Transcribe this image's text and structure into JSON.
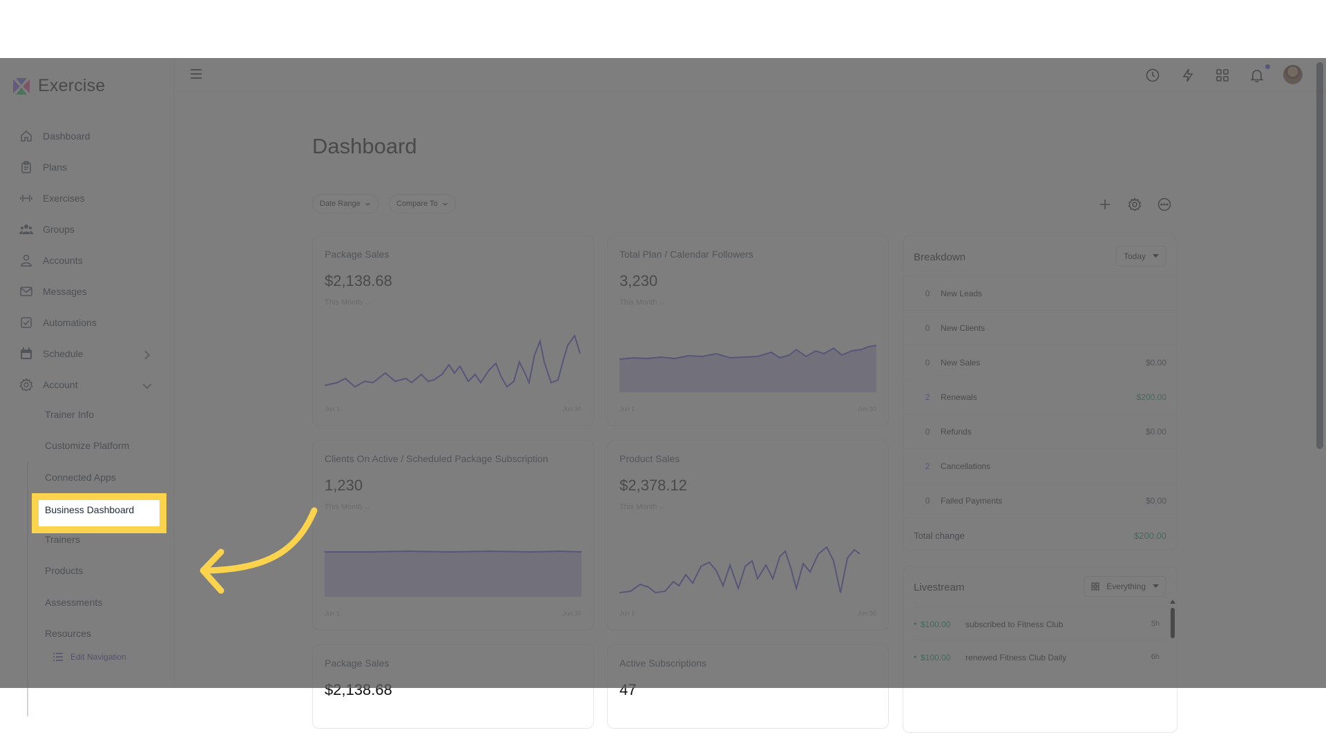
{
  "app": {
    "name": "Exercise"
  },
  "sidebar": {
    "items": [
      {
        "label": "Dashboard",
        "icon": "home-icon"
      },
      {
        "label": "Plans",
        "icon": "clipboard-icon"
      },
      {
        "label": "Exercises",
        "icon": "dumbbell-icon"
      },
      {
        "label": "Groups",
        "icon": "users-icon"
      },
      {
        "label": "Accounts",
        "icon": "user-icon"
      },
      {
        "label": "Messages",
        "icon": "mail-icon"
      },
      {
        "label": "Automations",
        "icon": "checkbox-icon"
      },
      {
        "label": "Schedule",
        "icon": "calendar-icon"
      },
      {
        "label": "Account",
        "icon": "gear-icon"
      }
    ],
    "sub_items": [
      "Trainer Info",
      "Customize Platform",
      "Connected Apps",
      "Business Dashboard",
      "Trainers",
      "Products",
      "Assessments",
      "Resources"
    ],
    "edit_navigation": "Edit Navigation"
  },
  "page": {
    "title": "Dashboard",
    "filters": {
      "date_range": "Date Range",
      "compare_to": "Compare To"
    }
  },
  "cards": [
    {
      "title": "Package Sales",
      "value": "$2,138.68",
      "period": "This Month",
      "start": "Jun 1",
      "end": "Jun 30"
    },
    {
      "title": "Total Plan / Calendar Followers",
      "value": "3,230",
      "period": "This Month",
      "start": "Jun 1",
      "end": "Jun 30"
    },
    {
      "title": "Clients On Active / Scheduled Package Subscription",
      "value": "1,230",
      "period": "This Month",
      "start": "Jun 1",
      "end": "Jun 30"
    },
    {
      "title": "Product Sales",
      "value": "$2,378.12",
      "period": "This Month",
      "start": "Jun 1",
      "end": "Jun 30"
    },
    {
      "title": "Package Sales",
      "value": "$2,138.68"
    },
    {
      "title": "Active Subscriptions",
      "value": "47"
    }
  ],
  "breakdown": {
    "title": "Breakdown",
    "select": "Today",
    "rows": [
      {
        "count": "0",
        "label": "New Leads",
        "amount": ""
      },
      {
        "count": "0",
        "label": "New Clients",
        "amount": ""
      },
      {
        "count": "0",
        "label": "New Sales",
        "amount": "$0.00"
      },
      {
        "count": "2",
        "label": "Renewals",
        "amount": "$200.00"
      },
      {
        "count": "0",
        "label": "Refunds",
        "amount": "$0.00"
      },
      {
        "count": "2",
        "label": "Cancellations",
        "amount": ""
      },
      {
        "count": "0",
        "label": "Failed Payments",
        "amount": "$0.00"
      }
    ],
    "total_label": "Total change",
    "total_amount": "$200.00"
  },
  "livestream": {
    "title": "Livestream",
    "select": "Everything",
    "events": [
      {
        "amount": "$100.00",
        "text": "subscribed to Fitness Club",
        "time": "5h"
      },
      {
        "amount": "$100.00",
        "text": "renewed Fitness Club Daily",
        "time": "6h"
      }
    ]
  },
  "colors": {
    "accent": "#4f46e5",
    "highlight": "#fcd34d",
    "positive": "#059669",
    "overlay": "#5a5a5a"
  }
}
